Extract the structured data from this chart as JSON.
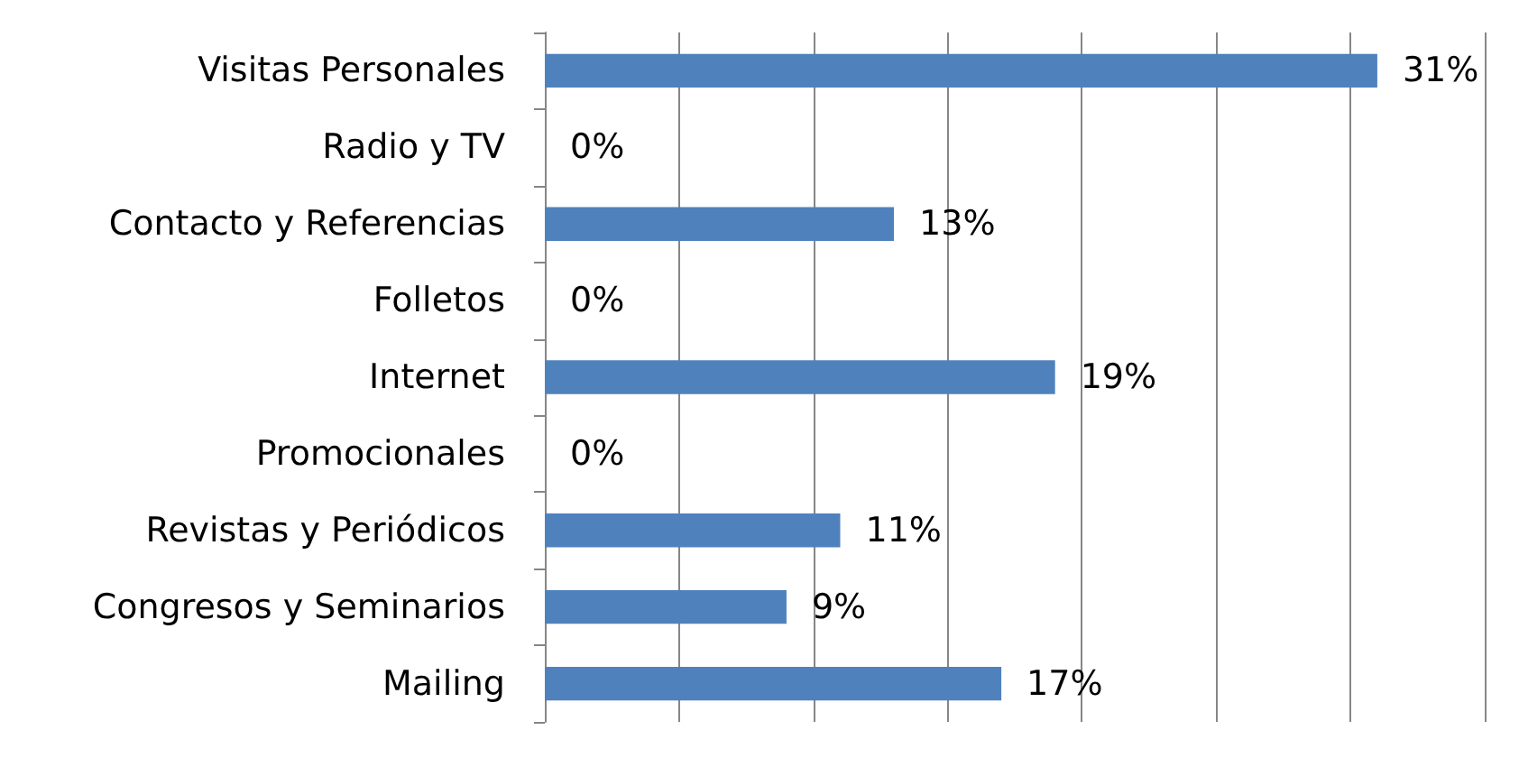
{
  "chart_data": {
    "type": "bar",
    "orientation": "horizontal",
    "categories": [
      "Visitas Personales",
      "Radio y TV",
      "Contacto y Referencias",
      "Folletos",
      "Internet",
      "Promocionales",
      "Revistas y Periódicos",
      "Congresos y Seminarios",
      "Mailing"
    ],
    "values": [
      31,
      0,
      13,
      0,
      19,
      0,
      11,
      9,
      17
    ],
    "value_labels": [
      "31%",
      "0%",
      "13%",
      "0%",
      "19%",
      "0%",
      "11%",
      "9%",
      "17%"
    ],
    "color": "#4f81bd",
    "xlim": [
      0,
      35
    ],
    "xticks": [
      {
        "value": 0,
        "label": null
      },
      {
        "value": 5,
        "label": null
      },
      {
        "value": 10,
        "label": null
      },
      {
        "value": 15,
        "label": null
      },
      {
        "value": 20,
        "label": null
      },
      {
        "value": 25,
        "label": null
      },
      {
        "value": 30,
        "label": null
      },
      {
        "value": 35,
        "label": null
      }
    ],
    "grid": "x",
    "tick_labels": "y"
  }
}
